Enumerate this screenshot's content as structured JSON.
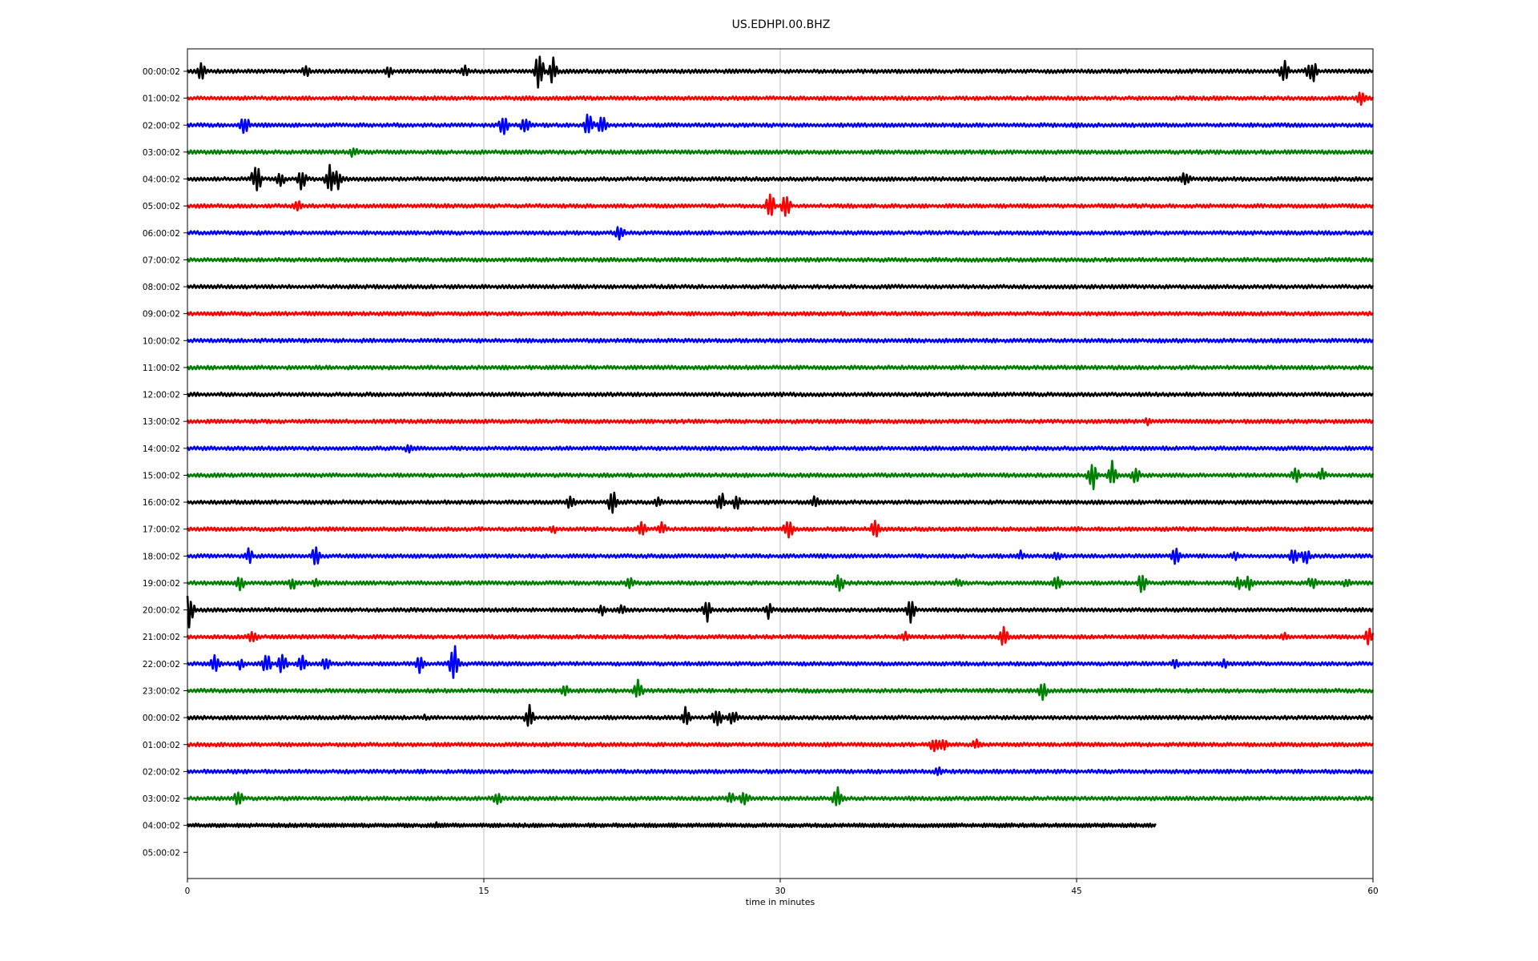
{
  "chart_data": {
    "type": "line",
    "title": "US.EDHPI.00.BHZ",
    "xlabel": "time in minutes",
    "ylabel": "",
    "xlim": [
      0,
      60
    ],
    "x_ticks": [
      0,
      15,
      30,
      45,
      60
    ],
    "grid": "vertical lines at x ticks",
    "colors_cycle": [
      "#000000",
      "#ff0000",
      "#0000ff",
      "#008000"
    ],
    "rows": [
      {
        "label": "00:00:02",
        "end_minute": 60,
        "events": [
          [
            0.7,
            0.9
          ],
          [
            6.0,
            0.6
          ],
          [
            10.2,
            0.5
          ],
          [
            14.0,
            0.7
          ],
          [
            17.8,
            1.8
          ],
          [
            18.5,
            1.3
          ],
          [
            55.5,
            1.1
          ],
          [
            56.8,
            0.8
          ],
          [
            57.0,
            0.9
          ]
        ]
      },
      {
        "label": "01:00:02",
        "end_minute": 60,
        "events": [
          [
            59.4,
            0.8
          ]
        ]
      },
      {
        "label": "02:00:02",
        "end_minute": 60,
        "events": [
          [
            2.9,
            1.0
          ],
          [
            16.0,
            1.0
          ],
          [
            17.1,
            0.9
          ],
          [
            20.3,
            1.3
          ],
          [
            21.0,
            1.0
          ],
          [
            45.0,
            0.4
          ]
        ]
      },
      {
        "label": "03:00:02",
        "end_minute": 60,
        "events": [
          [
            8.4,
            0.6
          ]
        ]
      },
      {
        "label": "04:00:02",
        "end_minute": 60,
        "events": [
          [
            3.5,
            1.8
          ],
          [
            4.7,
            0.9
          ],
          [
            5.8,
            1.2
          ],
          [
            7.2,
            1.4
          ],
          [
            7.6,
            1.0
          ],
          [
            43.4,
            0.3
          ],
          [
            50.5,
            0.9
          ]
        ]
      },
      {
        "label": "05:00:02",
        "end_minute": 60,
        "events": [
          [
            5.6,
            0.6
          ],
          [
            29.5,
            1.3
          ],
          [
            30.3,
            1.2
          ]
        ]
      },
      {
        "label": "06:00:02",
        "end_minute": 60,
        "events": [
          [
            21.9,
            0.9
          ]
        ]
      },
      {
        "label": "07:00:02",
        "end_minute": 60,
        "events": []
      },
      {
        "label": "08:00:02",
        "end_minute": 60,
        "events": []
      },
      {
        "label": "09:00:02",
        "end_minute": 60,
        "events": []
      },
      {
        "label": "10:00:02",
        "end_minute": 60,
        "events": []
      },
      {
        "label": "11:00:02",
        "end_minute": 60,
        "events": []
      },
      {
        "label": "12:00:02",
        "end_minute": 60,
        "events": []
      },
      {
        "label": "13:00:02",
        "end_minute": 60,
        "events": [
          [
            48.6,
            0.4
          ]
        ]
      },
      {
        "label": "14:00:02",
        "end_minute": 60,
        "events": [
          [
            11.2,
            0.5
          ]
        ]
      },
      {
        "label": "15:00:02",
        "end_minute": 60,
        "events": [
          [
            45.8,
            1.7
          ],
          [
            46.8,
            1.3
          ],
          [
            48.0,
            1.0
          ],
          [
            56.1,
            0.9
          ],
          [
            57.4,
            0.8
          ]
        ]
      },
      {
        "label": "16:00:02",
        "end_minute": 60,
        "events": [
          [
            19.4,
            0.8
          ],
          [
            21.5,
            1.2
          ],
          [
            23.8,
            0.6
          ],
          [
            27.0,
            1.0
          ],
          [
            27.8,
            0.8
          ],
          [
            31.8,
            0.7
          ]
        ]
      },
      {
        "label": "17:00:02",
        "end_minute": 60,
        "events": [
          [
            18.5,
            0.5
          ],
          [
            23.0,
            0.9
          ],
          [
            24.0,
            0.7
          ],
          [
            30.4,
            1.1
          ],
          [
            34.8,
            0.9
          ],
          [
            45.0,
            0.3
          ]
        ]
      },
      {
        "label": "18:00:02",
        "end_minute": 60,
        "events": [
          [
            3.1,
            0.8
          ],
          [
            6.5,
            1.0
          ],
          [
            42.2,
            0.6
          ],
          [
            44.0,
            0.5
          ],
          [
            50.0,
            0.9
          ],
          [
            53.0,
            0.5
          ],
          [
            56.0,
            0.9
          ],
          [
            56.6,
            0.8
          ]
        ]
      },
      {
        "label": "19:00:02",
        "end_minute": 60,
        "events": [
          [
            2.7,
            0.8
          ],
          [
            5.3,
            0.7
          ],
          [
            6.5,
            0.6
          ],
          [
            22.4,
            0.7
          ],
          [
            33.0,
            1.0
          ],
          [
            39.0,
            0.5
          ],
          [
            44.0,
            0.7
          ],
          [
            48.3,
            1.0
          ],
          [
            53.2,
            0.6
          ],
          [
            53.7,
            0.7
          ],
          [
            56.9,
            0.7
          ],
          [
            58.7,
            0.6
          ]
        ]
      },
      {
        "label": "20:00:02",
        "end_minute": 60,
        "events": [
          [
            0.1,
            1.8
          ],
          [
            21.0,
            0.7
          ],
          [
            22.0,
            0.5
          ],
          [
            26.3,
            1.1
          ],
          [
            29.4,
            0.8
          ],
          [
            36.6,
            1.2
          ]
        ]
      },
      {
        "label": "21:00:02",
        "end_minute": 60,
        "events": [
          [
            3.3,
            0.8
          ],
          [
            36.3,
            0.6
          ],
          [
            41.3,
            1.0
          ],
          [
            55.5,
            0.5
          ],
          [
            59.8,
            0.8
          ]
        ]
      },
      {
        "label": "22:00:02",
        "end_minute": 60,
        "events": [
          [
            1.4,
            0.9
          ],
          [
            2.7,
            0.6
          ],
          [
            4.0,
            1.0
          ],
          [
            4.8,
            1.0
          ],
          [
            5.8,
            0.9
          ],
          [
            7.0,
            0.7
          ],
          [
            11.8,
            1.0
          ],
          [
            13.5,
            1.8
          ],
          [
            50.0,
            0.5
          ],
          [
            52.5,
            0.5
          ]
        ]
      },
      {
        "label": "23:00:02",
        "end_minute": 60,
        "events": [
          [
            19.1,
            0.6
          ],
          [
            22.8,
            1.1
          ],
          [
            43.3,
            0.9
          ]
        ]
      },
      {
        "label": "00:00:02",
        "end_minute": 60,
        "events": [
          [
            12.0,
            0.3
          ],
          [
            17.3,
            1.4
          ],
          [
            25.2,
            1.0
          ],
          [
            26.8,
            1.1
          ],
          [
            27.6,
            0.9
          ],
          [
            33.8,
            0.3
          ]
        ]
      },
      {
        "label": "01:00:02",
        "end_minute": 60,
        "events": [
          [
            37.8,
            0.8
          ],
          [
            38.2,
            0.8
          ],
          [
            39.9,
            0.6
          ]
        ]
      },
      {
        "label": "02:00:02",
        "end_minute": 60,
        "events": [
          [
            38.0,
            0.5
          ]
        ]
      },
      {
        "label": "03:00:02",
        "end_minute": 60,
        "events": [
          [
            2.6,
            1.0
          ],
          [
            15.7,
            0.9
          ],
          [
            27.5,
            0.7
          ],
          [
            28.2,
            0.9
          ],
          [
            32.9,
            1.1
          ]
        ]
      },
      {
        "label": "04:00:02",
        "end_minute": 49,
        "events": [
          [
            12.6,
            0.3
          ]
        ]
      },
      {
        "label": "05:00:02",
        "end_minute": 0,
        "events": []
      }
    ]
  }
}
